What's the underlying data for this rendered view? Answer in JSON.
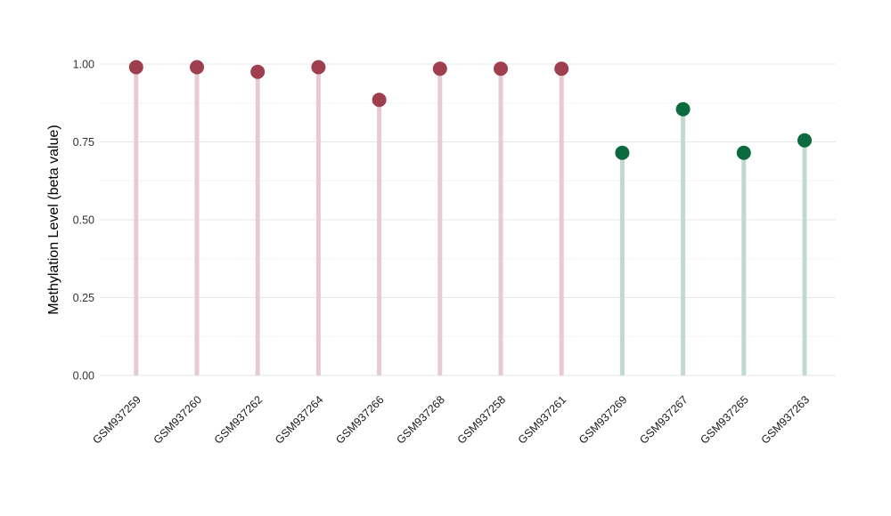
{
  "chart_data": {
    "type": "lollipop",
    "title": "",
    "xlabel": "",
    "ylabel": "Methylation Level (beta value)",
    "categories": [
      "GSM937259",
      "GSM937260",
      "GSM937262",
      "GSM937264",
      "GSM937266",
      "GSM937268",
      "GSM937258",
      "GSM937261",
      "GSM937269",
      "GSM937267",
      "GSM937265",
      "GSM937263"
    ],
    "values": [
      0.99,
      0.99,
      0.975,
      0.99,
      0.885,
      0.985,
      0.985,
      0.985,
      0.715,
      0.855,
      0.715,
      0.755
    ],
    "groups": [
      "group1",
      "group1",
      "group1",
      "group1",
      "group1",
      "group1",
      "group1",
      "group1",
      "group2",
      "group2",
      "group2",
      "group2"
    ],
    "y_ticks": [
      {
        "value": 0.0,
        "label": "0.00"
      },
      {
        "value": 0.25,
        "label": "0.25"
      },
      {
        "value": 0.5,
        "label": "0.50"
      },
      {
        "value": 0.75,
        "label": "0.75"
      },
      {
        "value": 1.0,
        "label": "1.00"
      }
    ],
    "y_minor_ticks": [
      0.125,
      0.375,
      0.625,
      0.875
    ],
    "ylim": [
      0,
      1.05
    ],
    "grid": "horizontal major and minor, no axis lines, no legend",
    "legend": "none",
    "colors": {
      "background": "#ffffff",
      "group1_point": "#9e3e4e",
      "group1_stem": "#e6cbd1",
      "group2_point": "#0c6b3e",
      "group2_stem": "#c2d9ce",
      "grid_major": "#e7e7e7",
      "grid_minor": "#f4f4f4",
      "tick_label": "#333333",
      "category_label": "#1a1a1a",
      "axis_title": "#000000"
    }
  }
}
